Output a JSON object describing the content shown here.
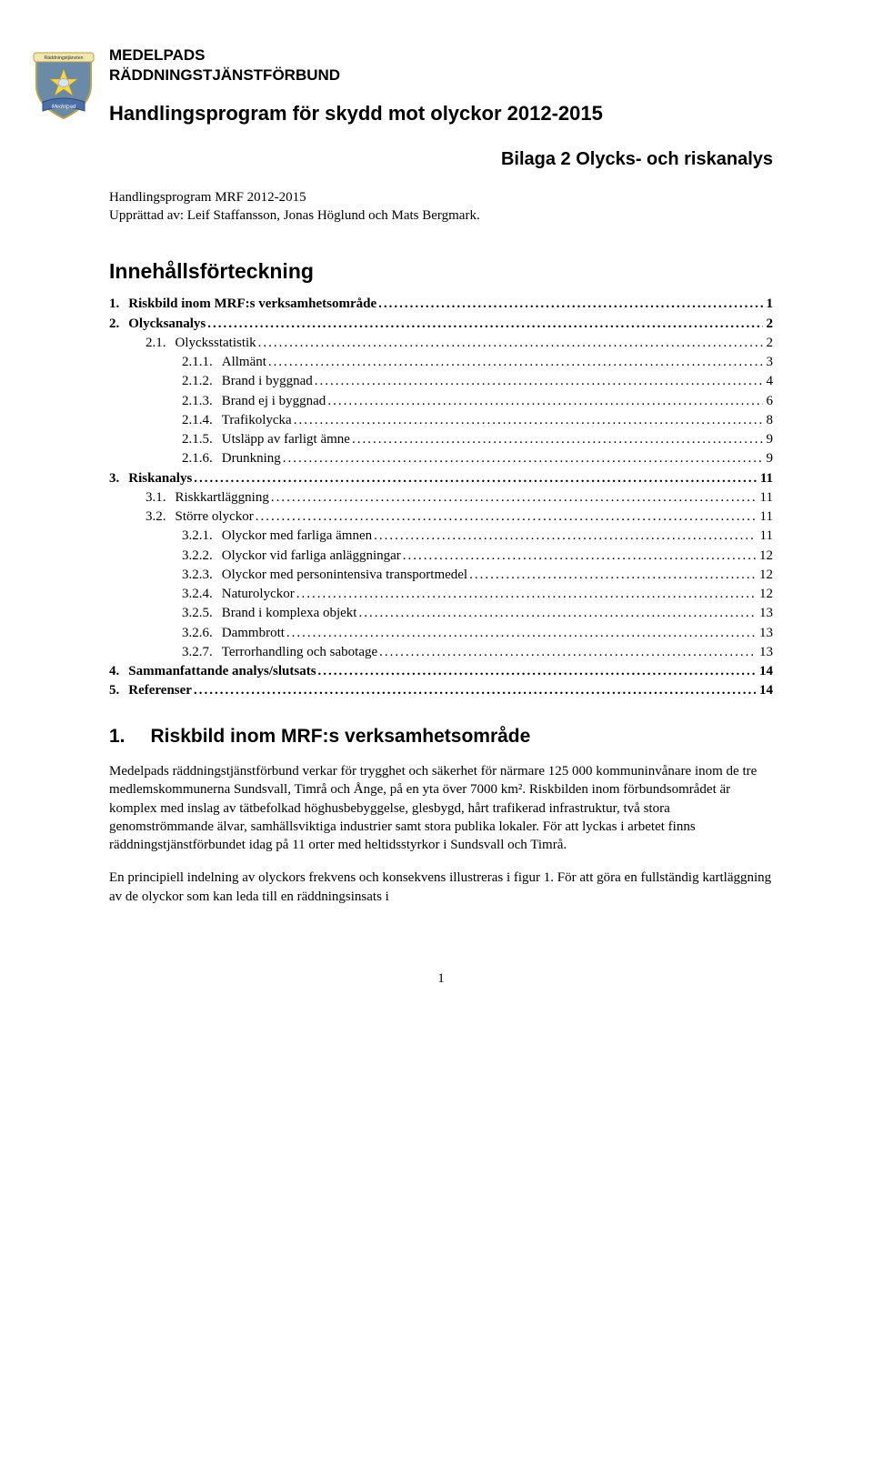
{
  "org": {
    "line1": "MEDELPADS",
    "line2": "RÄDDNINGSTJÄNSTFÖRBUND"
  },
  "title": "Handlingsprogram för skydd mot olyckor 2012-2015",
  "subtitle": "Bilaga 2 Olycks- och riskanalys",
  "meta": {
    "line1": "Handlingsprogram MRF 2012-2015",
    "line2": "Upprättad av: Leif Staffansson, Jonas Höglund och Mats Bergmark."
  },
  "toc_title": "Innehållsförteckning",
  "toc": [
    {
      "level": 0,
      "num": "1.",
      "label": "Riskbild inom MRF:s verksamhetsområde",
      "page": "1"
    },
    {
      "level": 0,
      "num": "2.",
      "label": "Olycksanalys",
      "page": "2"
    },
    {
      "level": 1,
      "num": "2.1.",
      "label": "Olycksstatistik",
      "page": "2"
    },
    {
      "level": 2,
      "num": "2.1.1.",
      "label": "Allmänt",
      "page": "3"
    },
    {
      "level": 2,
      "num": "2.1.2.",
      "label": "Brand i byggnad",
      "page": "4"
    },
    {
      "level": 2,
      "num": "2.1.3.",
      "label": "Brand ej i byggnad",
      "page": "6"
    },
    {
      "level": 2,
      "num": "2.1.4.",
      "label": "Trafikolycka",
      "page": "8"
    },
    {
      "level": 2,
      "num": "2.1.5.",
      "label": "Utsläpp av farligt ämne",
      "page": "9"
    },
    {
      "level": 2,
      "num": "2.1.6.",
      "label": "Drunkning",
      "page": "9"
    },
    {
      "level": 0,
      "num": "3.",
      "label": "Riskanalys",
      "page": "11"
    },
    {
      "level": 1,
      "num": "3.1.",
      "label": "Riskkartläggning",
      "page": "11"
    },
    {
      "level": 1,
      "num": "3.2.",
      "label": "Större olyckor",
      "page": "11"
    },
    {
      "level": 2,
      "num": "3.2.1.",
      "label": "Olyckor med farliga ämnen",
      "page": "11"
    },
    {
      "level": 2,
      "num": "3.2.2.",
      "label": "Olyckor vid farliga anläggningar",
      "page": "12"
    },
    {
      "level": 2,
      "num": "3.2.3.",
      "label": "Olyckor med personintensiva transportmedel",
      "page": "12"
    },
    {
      "level": 2,
      "num": "3.2.4.",
      "label": "Naturolyckor",
      "page": "12"
    },
    {
      "level": 2,
      "num": "3.2.5.",
      "label": "Brand i komplexa objekt",
      "page": "13"
    },
    {
      "level": 2,
      "num": "3.2.6.",
      "label": "Dammbrott",
      "page": "13"
    },
    {
      "level": 2,
      "num": "3.2.7.",
      "label": "Terrorhandling och sabotage",
      "page": "13"
    },
    {
      "level": 0,
      "num": "4.",
      "label": "Sammanfattande analys/slutsats",
      "page": "14"
    },
    {
      "level": 0,
      "num": "5.",
      "label": "Referenser",
      "page": "14"
    }
  ],
  "section1": {
    "num": "1.",
    "heading": "Riskbild inom MRF:s verksamhetsområde",
    "p1": "Medelpads räddningstjänstförbund verkar för trygghet och säkerhet för närmare 125 000 kommuninvånare inom de tre medlemskommunerna Sundsvall, Timrå och Ånge, på en yta över 7000 km². Riskbilden inom förbundsområdet är komplex med inslag av tätbefolkad höghusbebyggelse, glesbygd, hårt trafikerad infrastruktur, två stora genomströmmande älvar, samhällsviktiga industrier samt stora publika lokaler. För att lyckas i arbetet finns räddningstjänstförbundet idag på 11 orter med heltidsstyrkor i Sundsvall och Timrå.",
    "p2": "En principiell indelning av olyckors frekvens och konsekvens illustreras i figur 1. För att göra en fullständig kartläggning av de olyckor som kan leda till en räddningsinsats i"
  },
  "page_number": "1",
  "logo": {
    "shield_fill": "#6b8aa8",
    "shield_stroke": "#b8a24a",
    "banner_top_fill": "#f2e7b0",
    "banner_top_text": "Räddningstjänsten",
    "banner_bottom_fill": "#4a6fa5",
    "banner_bottom_text": "Medelpad",
    "star_fill": "#f5d94a"
  }
}
